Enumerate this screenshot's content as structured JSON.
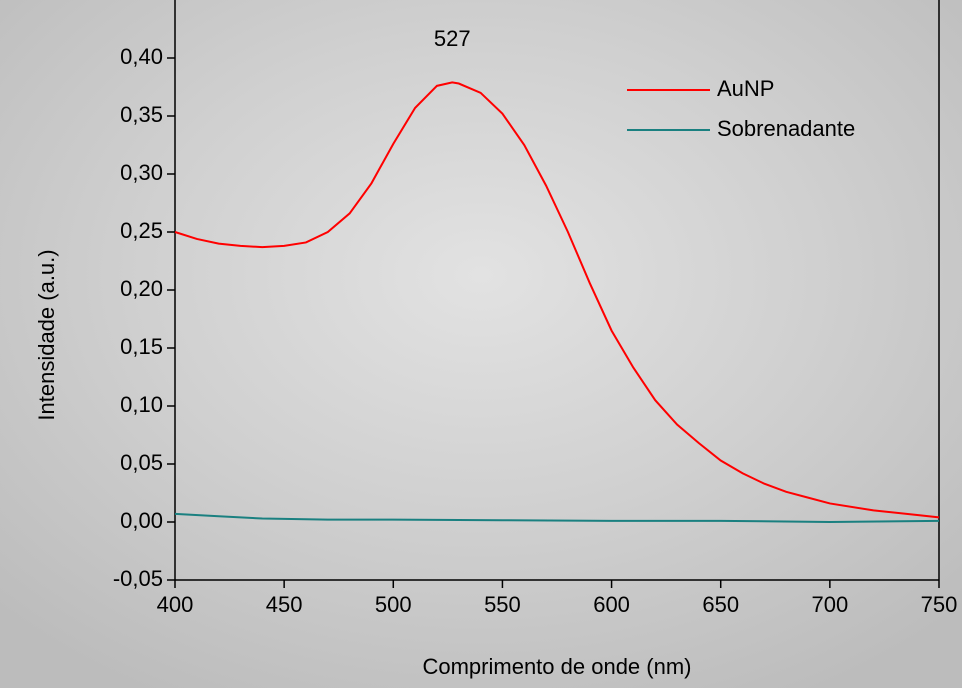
{
  "chart_data": {
    "type": "line",
    "x_label": "Comprimento de onde (nm)",
    "y_label": "Intensidade (a.u.)",
    "annotation": {
      "text": "527",
      "x": 527,
      "y": 0.4
    },
    "xlim": [
      400,
      750
    ],
    "xticks": [
      400,
      450,
      500,
      550,
      600,
      650,
      700,
      750
    ],
    "ylim": [
      -0.05,
      0.45
    ],
    "yticks": [
      {
        "value": -0.05,
        "label": "-0,05"
      },
      {
        "value": 0,
        "label": "0,00"
      },
      {
        "value": 0.05,
        "label": "0,05"
      },
      {
        "value": 0.1,
        "label": "0,10"
      },
      {
        "value": 0.15,
        "label": "0,15"
      },
      {
        "value": 0.2,
        "label": "0,20"
      },
      {
        "value": 0.25,
        "label": "0,25"
      },
      {
        "value": 0.3,
        "label": "0,30"
      },
      {
        "value": 0.35,
        "label": "0,35"
      },
      {
        "value": 0.4,
        "label": "0,40"
      }
    ],
    "legend": "upper right",
    "series": [
      {
        "name": "AuNP",
        "color": "#ff0000",
        "x": [
          400,
          410,
          420,
          430,
          440,
          450,
          460,
          470,
          480,
          490,
          500,
          510,
          520,
          527,
          530,
          540,
          550,
          560,
          570,
          580,
          590,
          600,
          610,
          620,
          630,
          640,
          650,
          660,
          670,
          680,
          690,
          700,
          720,
          740,
          750
        ],
        "values": [
          0.25,
          0.244,
          0.24,
          0.238,
          0.237,
          0.238,
          0.241,
          0.25,
          0.266,
          0.292,
          0.326,
          0.357,
          0.376,
          0.379,
          0.378,
          0.37,
          0.352,
          0.325,
          0.29,
          0.25,
          0.206,
          0.165,
          0.133,
          0.105,
          0.084,
          0.068,
          0.053,
          0.042,
          0.033,
          0.026,
          0.021,
          0.016,
          0.01,
          0.006,
          0.004
        ]
      },
      {
        "name": "Sobrenadante",
        "color": "#1a8080",
        "x": [
          400,
          420,
          440,
          470,
          500,
          550,
          600,
          650,
          700,
          750
        ],
        "values": [
          0.007,
          0.005,
          0.003,
          0.002,
          0.002,
          0.0015,
          0.001,
          0.001,
          0.0,
          0.001
        ]
      }
    ]
  }
}
